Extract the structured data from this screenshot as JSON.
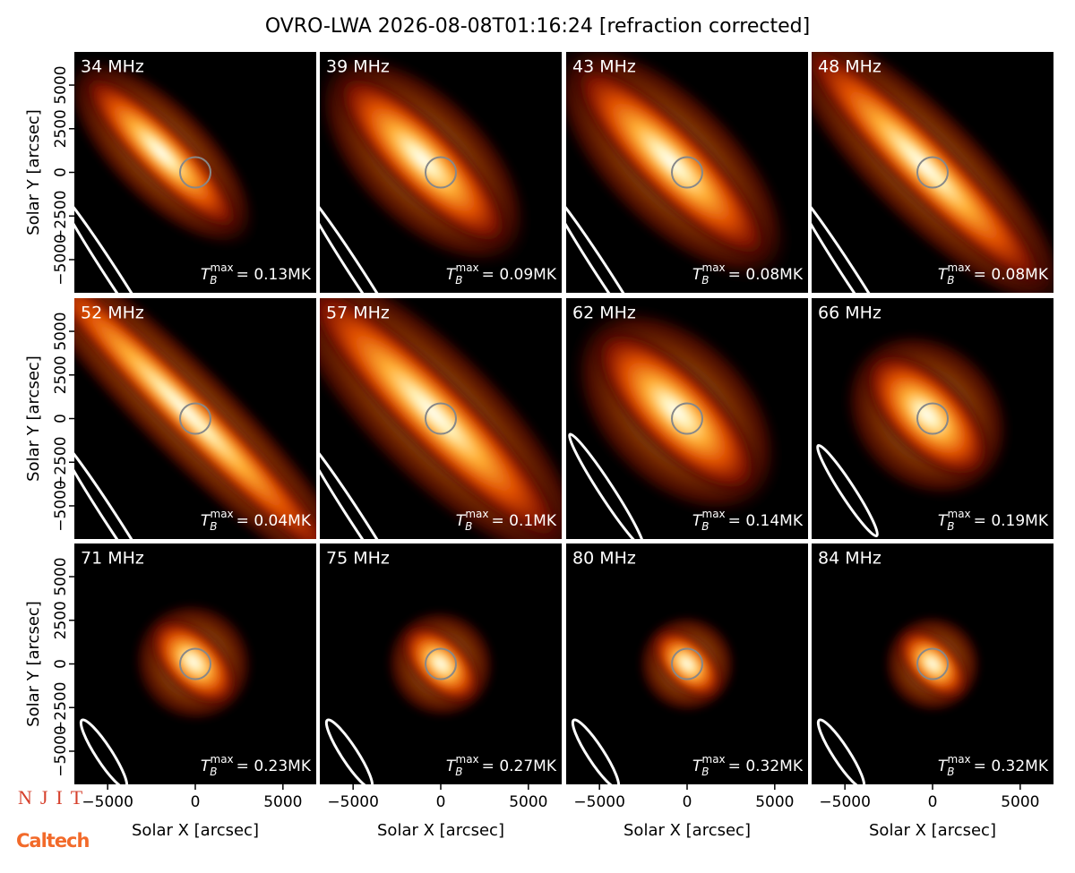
{
  "logos": {
    "njit": "NJIT",
    "caltech": "Caltech"
  },
  "chart_data": {
    "type": "image-grid",
    "title": "OVRO-LWA 2026-08-08T01:16:24 [refraction corrected]",
    "xlabel": "Solar X [arcsec]",
    "ylabel": "Solar Y [arcsec]",
    "xlim": [
      -6900,
      6900
    ],
    "ylim": [
      -6900,
      6900
    ],
    "xticks": [
      {
        "value": -5000,
        "label": "−5000"
      },
      0,
      5000
    ],
    "yticks": [
      {
        "value": -5000,
        "label": "−5000"
      },
      {
        "value": -2500,
        "label": "−2500"
      },
      0,
      2500,
      5000
    ],
    "panels": [
      {
        "label": "34 MHz",
        "annotation": {
          "symbol": "T",
          "subscript": "B",
          "superscript": "max",
          "text": "= 0.13MK"
        }
      },
      {
        "label": "39 MHz",
        "annotation": {
          "symbol": "T",
          "subscript": "B",
          "superscript": "max",
          "text": "= 0.09MK"
        }
      },
      {
        "label": "43 MHz",
        "annotation": {
          "symbol": "T",
          "subscript": "B",
          "superscript": "max",
          "text": "= 0.08MK"
        }
      },
      {
        "label": "48 MHz",
        "annotation": {
          "symbol": "T",
          "subscript": "B",
          "superscript": "max",
          "text": "= 0.08MK"
        }
      },
      {
        "label": "52 MHz",
        "annotation": {
          "symbol": "T",
          "subscript": "B",
          "superscript": "max",
          "text": "= 0.04MK"
        }
      },
      {
        "label": "57 MHz",
        "annotation": {
          "symbol": "T",
          "subscript": "B",
          "superscript": "max",
          "text": "= 0.1MK"
        }
      },
      {
        "label": "62 MHz",
        "annotation": {
          "symbol": "T",
          "subscript": "B",
          "superscript": "max",
          "text": "= 0.14MK"
        }
      },
      {
        "label": "66 MHz",
        "annotation": {
          "symbol": "T",
          "subscript": "B",
          "superscript": "max",
          "text": "= 0.19MK"
        }
      },
      {
        "label": "71 MHz",
        "annotation": {
          "symbol": "T",
          "subscript": "B",
          "superscript": "max",
          "text": "= 0.23MK"
        }
      },
      {
        "label": "75 MHz",
        "annotation": {
          "symbol": "T",
          "subscript": "B",
          "superscript": "max",
          "text": "= 0.27MK"
        }
      },
      {
        "label": "80 MHz",
        "annotation": {
          "symbol": "T",
          "subscript": "B",
          "superscript": "max",
          "text": "= 0.32MK"
        }
      },
      {
        "label": "84 MHz",
        "annotation": {
          "symbol": "T",
          "subscript": "B",
          "superscript": "max",
          "text": "= 0.32MK"
        }
      }
    ]
  }
}
